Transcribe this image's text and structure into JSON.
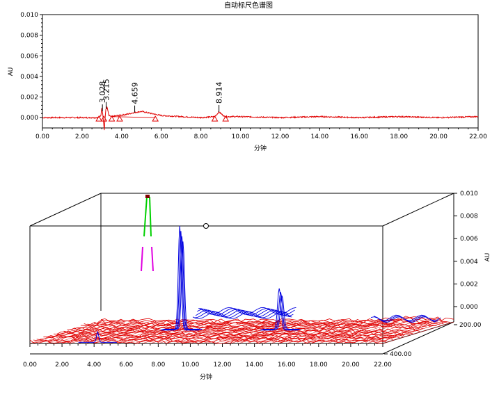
{
  "chart_data": [
    {
      "type": "line",
      "title": "自动标尺色谱图",
      "xlabel": "分钟",
      "ylabel": "AU",
      "xlim": [
        0,
        22
      ],
      "ylim": [
        -0.001,
        0.01
      ],
      "x_ticks": [
        "0.00",
        "2.00",
        "4.00",
        "6.00",
        "8.00",
        "10.00",
        "12.00",
        "14.00",
        "16.00",
        "18.00",
        "20.00",
        "22.00"
      ],
      "y_ticks": [
        "0.000",
        "0.002",
        "0.004",
        "0.006",
        "0.008",
        "0.010"
      ],
      "series": [
        {
          "color": "#e00000",
          "x": [
            0.0,
            1.0,
            2.0,
            2.8,
            2.95,
            3.0,
            3.05,
            3.12,
            3.2,
            3.27,
            3.35,
            3.5,
            3.8,
            4.2,
            4.66,
            5.0,
            5.5,
            6.0,
            7.0,
            8.0,
            8.7,
            8.914,
            9.2,
            10.0,
            12.0,
            14.0,
            16.0,
            18.0,
            20.0,
            22.0
          ],
          "y": [
            0.0,
            0.0,
            0.0,
            0.0,
            0.0002,
            0.001,
            0.0003,
            -0.0012,
            0.0008,
            0.001,
            0.0002,
            0.0001,
            0.0002,
            0.0003,
            0.0005,
            0.0006,
            0.0004,
            0.0002,
            0.0001,
            0.0,
            0.0001,
            0.00055,
            0.0001,
            0.0001,
            0.0,
            0.0001,
            0.0,
            0.0001,
            0.0,
            0.0001
          ]
        }
      ],
      "peak_labels": [
        {
          "x": 3.028,
          "text": "3.028"
        },
        {
          "x": 3.215,
          "text": "3.215"
        },
        {
          "x": 4.659,
          "text": "4.659"
        },
        {
          "x": 8.914,
          "text": "8.914"
        }
      ],
      "integration_markers_x": [
        2.85,
        3.1,
        3.5,
        3.9,
        5.7,
        8.7,
        9.25
      ],
      "grid": false
    },
    {
      "type": "area",
      "subtype": "3d-waterfall",
      "xlabel": "分钟",
      "zlabel": "AU",
      "xlim": [
        0,
        22
      ],
      "zlim": [
        -0.0005,
        0.01
      ],
      "x_ticks": [
        "0.00",
        "2.00",
        "4.00",
        "6.00",
        "8.00",
        "10.00",
        "12.00",
        "14.00",
        "16.00",
        "18.00",
        "20.00",
        "22.00"
      ],
      "z_ticks": [
        "0.000",
        "0.002",
        "0.004",
        "0.006",
        "0.008",
        "0.010"
      ],
      "y_ticks": [
        "200.00",
        "400.00"
      ],
      "color_bands": [
        "#e00000",
        "#0000e0",
        "#e000e0",
        "#00d000",
        "#800000"
      ],
      "grid": false
    }
  ]
}
